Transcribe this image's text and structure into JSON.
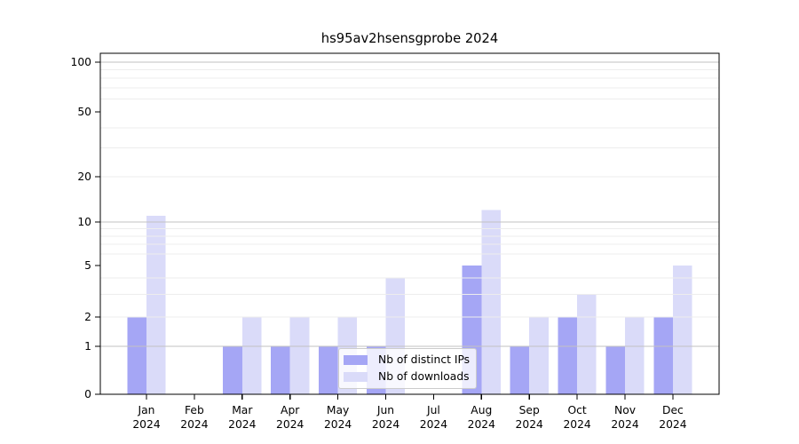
{
  "chart_data": {
    "type": "bar",
    "title": "hs95av2hsensgprobe 2024",
    "categories": [
      "Jan",
      "Feb",
      "Mar",
      "Apr",
      "May",
      "Jun",
      "Jul",
      "Aug",
      "Sep",
      "Oct",
      "Nov",
      "Dec"
    ],
    "x_year": "2024",
    "series": [
      {
        "name": "Nb of distinct IPs",
        "color": "#a5a6f5",
        "values": [
          2,
          0,
          1,
          1,
          1,
          1,
          0,
          5,
          1,
          2,
          1,
          2
        ]
      },
      {
        "name": "Nb of downloads",
        "color": "#dadbf9",
        "values": [
          11,
          0,
          2,
          2,
          2,
          4,
          0,
          12,
          2,
          3,
          2,
          5
        ]
      }
    ],
    "yaxis": {
      "scale": "symlog",
      "ticks": [
        0,
        1,
        2,
        5,
        10,
        20,
        50,
        100
      ],
      "major_gridlines": [
        1,
        10,
        100
      ],
      "minor_gridlines": [
        2,
        3,
        4,
        6,
        7,
        8,
        9,
        20,
        30,
        40,
        60,
        70,
        80,
        90
      ],
      "ylim": [
        0,
        114
      ]
    },
    "xlabel": "",
    "ylabel": "",
    "grid": true,
    "legend": {
      "position": "lower center"
    },
    "colors": {
      "major_grid": "#c2c2c2",
      "minor_grid": "#ededed",
      "axis": "#000000",
      "text": "#000000"
    }
  }
}
